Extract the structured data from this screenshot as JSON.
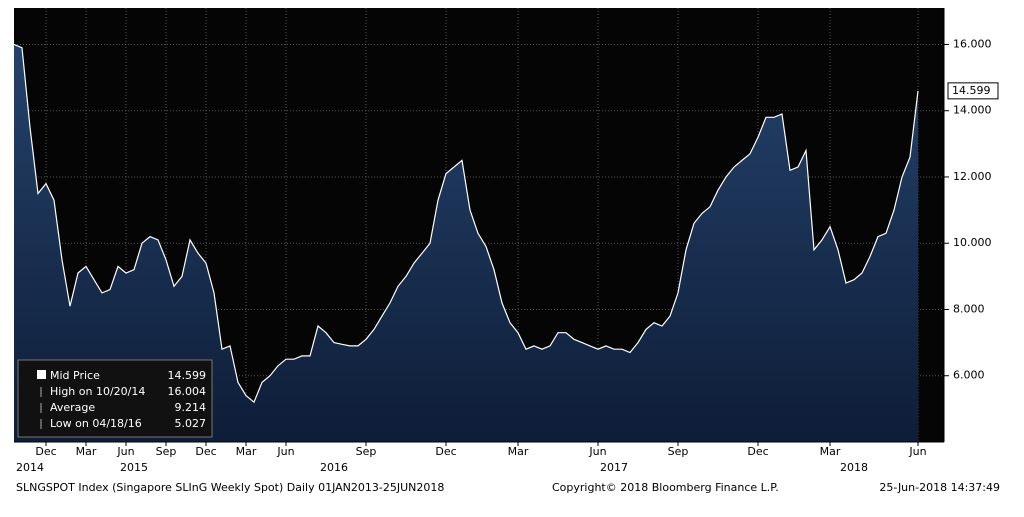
{
  "chart_data": {
    "type": "area",
    "series": [
      {
        "name": "Mid Price",
        "color": "#ffffff",
        "fill": "#1d3557",
        "values": [
          16.0,
          15.9,
          13.5,
          11.5,
          11.8,
          11.3,
          9.5,
          8.1,
          9.1,
          9.3,
          8.9,
          8.5,
          8.6,
          9.3,
          9.1,
          9.2,
          10.0,
          10.2,
          10.1,
          9.5,
          8.7,
          9.0,
          10.1,
          9.7,
          9.4,
          8.5,
          6.8,
          6.9,
          5.8,
          5.4,
          5.2,
          5.8,
          6.0,
          6.3,
          6.5,
          6.5,
          6.6,
          6.6,
          7.5,
          7.3,
          7.0,
          6.95,
          6.9,
          6.9,
          7.1,
          7.4,
          7.8,
          8.2,
          8.7,
          9.0,
          9.4,
          9.7,
          10.0,
          11.3,
          12.1,
          12.3,
          12.5,
          11.0,
          10.3,
          9.9,
          9.2,
          8.2,
          7.6,
          7.3,
          6.8,
          6.9,
          6.8,
          6.9,
          7.3,
          7.3,
          7.1,
          7.0,
          6.9,
          6.8,
          6.9,
          6.8,
          6.8,
          6.7,
          7.0,
          7.4,
          7.6,
          7.5,
          7.8,
          8.5,
          9.8,
          10.6,
          10.9,
          11.1,
          11.6,
          12.0,
          12.3,
          12.5,
          12.7,
          13.2,
          13.8,
          13.8,
          13.9,
          12.2,
          12.3,
          12.8,
          9.8,
          10.1,
          10.5,
          9.8,
          8.8,
          8.9,
          9.1,
          9.6,
          10.2,
          10.3,
          11.0,
          12.0,
          12.6,
          14.599
        ]
      }
    ],
    "categories": [
      null,
      null,
      null,
      null,
      "Dec",
      null,
      null,
      null,
      null,
      "Mar",
      null,
      null,
      null,
      null,
      "Jun",
      null,
      null,
      null,
      null,
      "Sep",
      null,
      null,
      null,
      null,
      "Dec",
      null,
      null,
      null,
      null,
      "Mar",
      null,
      null,
      null,
      null,
      "Jun",
      null,
      null,
      null,
      null,
      null,
      null,
      null,
      null,
      null,
      "Sep",
      null,
      null,
      null,
      null,
      null,
      null,
      null,
      null,
      null,
      "Dec",
      null,
      null,
      null,
      null,
      null,
      null,
      null,
      null,
      "Mar",
      null,
      null,
      null,
      null,
      null,
      null,
      null,
      null,
      null,
      "Jun",
      null,
      null,
      null,
      null,
      null,
      null,
      null,
      null,
      null,
      "Sep",
      null,
      null,
      null,
      null,
      null,
      null,
      null,
      null,
      null,
      "Dec",
      null,
      null,
      null,
      null,
      null,
      null,
      null,
      null,
      "Mar",
      null,
      null,
      null,
      null,
      null,
      null,
      null,
      null,
      null,
      null,
      "Jun"
    ],
    "years": [
      null,
      null,
      "2014",
      null,
      null,
      null,
      null,
      null,
      null,
      null,
      null,
      null,
      null,
      null,
      null,
      "2015",
      null,
      null,
      null,
      null,
      null,
      null,
      null,
      null,
      null,
      null,
      null,
      null,
      null,
      null,
      null,
      null,
      null,
      null,
      null,
      null,
      null,
      null,
      null,
      null,
      "2016",
      null,
      null,
      null,
      null,
      null,
      null,
      null,
      null,
      null,
      null,
      null,
      null,
      null,
      null,
      null,
      null,
      null,
      null,
      null,
      null,
      null,
      null,
      null,
      null,
      null,
      null,
      null,
      null,
      null,
      null,
      null,
      null,
      null,
      null,
      "2017",
      null,
      null,
      null,
      null,
      null,
      null,
      null,
      null,
      null,
      null,
      null,
      null,
      null,
      null,
      null,
      null,
      null,
      null,
      null,
      null,
      null,
      null,
      null,
      null,
      null,
      null,
      null,
      null,
      null,
      "2018",
      null,
      null,
      null,
      null,
      null,
      null,
      null,
      null
    ],
    "ylim": [
      4,
      17.1
    ],
    "yticks": [
      {
        "value": 6,
        "label": "6.000"
      },
      {
        "value": 8,
        "label": "8.000"
      },
      {
        "value": 10,
        "label": "10.000"
      },
      {
        "value": 12,
        "label": "12.000"
      },
      {
        "value": 14,
        "label": "14.000"
      },
      {
        "value": 16,
        "label": "16.000"
      }
    ],
    "grid": true,
    "legend_position": "lower-left",
    "stats": [
      {
        "name": "High on 10/20/14",
        "value": 16.004
      },
      {
        "name": "Average",
        "value": 9.214
      },
      {
        "name": "Low on 04/18/16",
        "value": 5.027
      }
    ],
    "footer": {
      "left": "SLNGSPOT Index (Singapore SLInG Weekly Spot)  Daily 01JAN2013-25JUN2018",
      "center": "Copyright© 2018 Bloomberg Finance L.P.",
      "right": "25-Jun-2018 14:37:49"
    }
  }
}
